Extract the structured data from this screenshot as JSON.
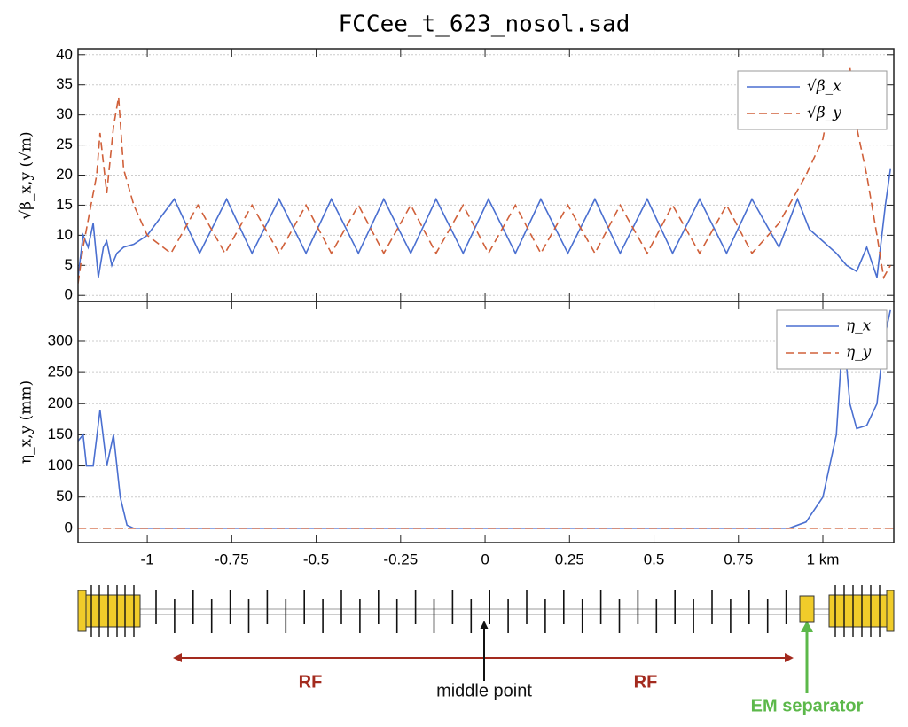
{
  "chart_data": [
    {
      "type": "line",
      "title": "FCCee_t_623_nosol.sad",
      "ylabel": "√β_x,y (√m)",
      "xlim": [
        -1.205,
        1.21
      ],
      "ylim": [
        -1,
        41
      ],
      "yticks": [
        0,
        5,
        10,
        15,
        20,
        25,
        30,
        35,
        40
      ],
      "grid": true,
      "legend": "upper right",
      "series": [
        {
          "name": "√β_x",
          "color": "#4a6fd0",
          "dash": false,
          "x": [
            -1.205,
            -1.19,
            -1.175,
            -1.16,
            -1.145,
            -1.13,
            -1.12,
            -1.105,
            -1.09,
            -1.07,
            -1.04,
            -1.0,
            -0.96,
            -0.92,
            -0.845,
            -0.765,
            -0.69,
            -0.61,
            -0.53,
            -0.455,
            -0.375,
            -0.3,
            -0.22,
            -0.145,
            -0.065,
            0.01,
            0.09,
            0.165,
            0.245,
            0.325,
            0.4,
            0.48,
            0.555,
            0.635,
            0.715,
            0.79,
            0.87,
            0.925,
            0.96,
            1.0,
            1.04,
            1.07,
            1.1,
            1.13,
            1.16,
            1.185,
            1.2
          ],
          "values": [
            3,
            10,
            8,
            12,
            3,
            8,
            9,
            5,
            7,
            8,
            8.5,
            10,
            13,
            16,
            7,
            16,
            7,
            16,
            7,
            16,
            7,
            16,
            7,
            16,
            7,
            16,
            7,
            16,
            7,
            16,
            7,
            16,
            7,
            16,
            7,
            16,
            8,
            16,
            11,
            9,
            7,
            5,
            4,
            8,
            3,
            15,
            21
          ]
        },
        {
          "name": "√β_y",
          "color": "#d0603a",
          "dash": true,
          "x": [
            -1.205,
            -1.19,
            -1.17,
            -1.15,
            -1.14,
            -1.12,
            -1.1,
            -1.085,
            -1.07,
            -1.04,
            -1.0,
            -0.93,
            -0.85,
            -0.77,
            -0.69,
            -0.61,
            -0.53,
            -0.455,
            -0.375,
            -0.3,
            -0.22,
            -0.145,
            -0.065,
            0.01,
            0.09,
            0.165,
            0.245,
            0.325,
            0.4,
            0.48,
            0.555,
            0.635,
            0.715,
            0.79,
            0.87,
            0.95,
            1.0,
            1.03,
            1.06,
            1.08,
            1.1,
            1.13,
            1.16,
            1.18,
            1.2
          ],
          "values": [
            2,
            8,
            14,
            20,
            27,
            17,
            28,
            33,
            21,
            15,
            10,
            7,
            15,
            7,
            15,
            7,
            15,
            7,
            15,
            7,
            15,
            7,
            15,
            7,
            15,
            7,
            15,
            7,
            15,
            7,
            15,
            7,
            15,
            7,
            12,
            20,
            26,
            35,
            28,
            38,
            28,
            20,
            10,
            3,
            5
          ]
        }
      ]
    },
    {
      "type": "line",
      "ylabel": "η_x,y (mm)",
      "xlim": [
        -1.205,
        1.21
      ],
      "xticks": [
        -1,
        -0.75,
        -0.5,
        -0.25,
        0,
        0.25,
        0.5,
        0.75,
        {
          "value": 1,
          "label": "1 km"
        }
      ],
      "ylim": [
        -23,
        364
      ],
      "yticks": [
        0,
        50,
        100,
        150,
        200,
        250,
        300
      ],
      "grid": true,
      "legend": "upper right",
      "series": [
        {
          "name": "η_x",
          "color": "#4a6fd0",
          "dash": false,
          "x": [
            -1.205,
            -1.19,
            -1.18,
            -1.16,
            -1.14,
            -1.12,
            -1.1,
            -1.08,
            -1.06,
            -1.04,
            0.9,
            0.95,
            1.0,
            1.04,
            1.06,
            1.08,
            1.1,
            1.13,
            1.16,
            1.18,
            1.2
          ],
          "values": [
            140,
            150,
            100,
            100,
            190,
            100,
            150,
            50,
            5,
            0,
            0,
            10,
            50,
            150,
            320,
            200,
            160,
            165,
            200,
            300,
            350
          ]
        },
        {
          "name": "η_y",
          "color": "#d0603a",
          "dash": true,
          "x": [
            -1.205,
            1.21
          ],
          "values": [
            0,
            0
          ]
        }
      ],
      "annotations": [
        "RF",
        "RF",
        "middle point",
        "EM separator"
      ]
    }
  ]
}
